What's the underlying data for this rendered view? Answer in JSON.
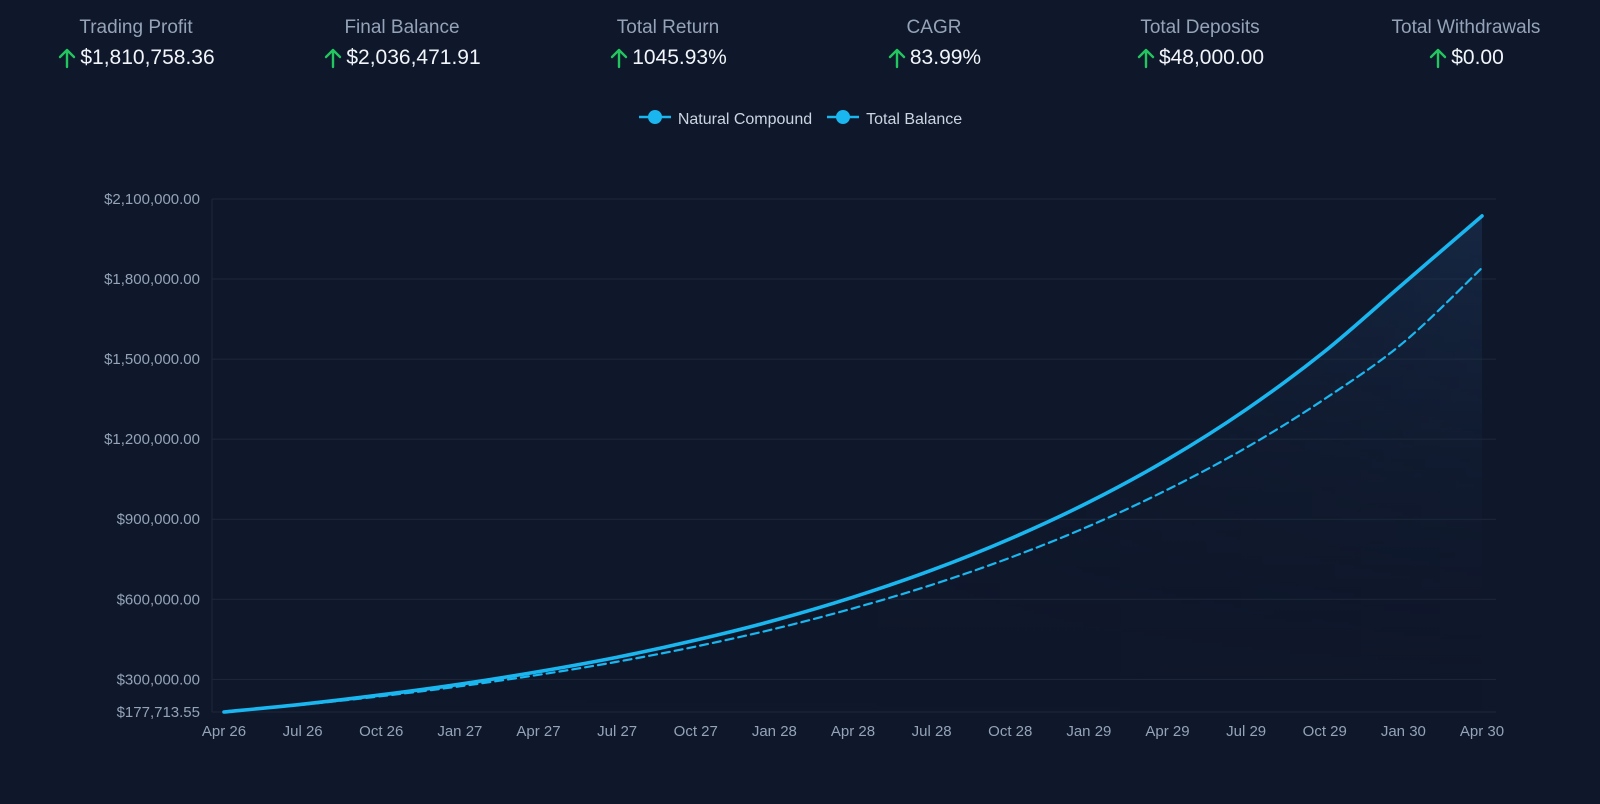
{
  "stats": [
    {
      "label": "Trading Profit",
      "value": "$1,810,758.36",
      "trend": "up"
    },
    {
      "label": "Final Balance",
      "value": "$2,036,471.91",
      "trend": "up"
    },
    {
      "label": "Total Return",
      "value": "1045.93%",
      "trend": "up"
    },
    {
      "label": "CAGR",
      "value": "83.99%",
      "trend": "up"
    },
    {
      "label": "Total Deposits",
      "value": "$48,000.00",
      "trend": "up"
    },
    {
      "label": "Total Withdrawals",
      "value": "$0.00",
      "trend": "up"
    }
  ],
  "colors": {
    "background": "#0f172a",
    "line": "#1ab6f0",
    "up_arrow": "#22c55e",
    "gridline": "#1e293b"
  },
  "icons": {
    "trend_up": "arrow-up-icon",
    "legend_marker": "line-dot-marker-icon"
  },
  "chart_data": {
    "type": "line",
    "legend": {
      "position": "top-center"
    },
    "grid": true,
    "x": [
      "Apr 26",
      "Jul 26",
      "Oct 26",
      "Jan 27",
      "Apr 27",
      "Jul 27",
      "Oct 27",
      "Jan 28",
      "Apr 28",
      "Jul 28",
      "Oct 28",
      "Jan 29",
      "Apr 29",
      "Jul 29",
      "Oct 29",
      "Jan 30",
      "Apr 30"
    ],
    "xlabel": "",
    "ylabel": "",
    "ylim": [
      177713.55,
      2100000
    ],
    "yticks": [
      177713.55,
      300000,
      600000,
      900000,
      1200000,
      1500000,
      1800000,
      2100000
    ],
    "ytick_labels": [
      "$177,713.55",
      "$300,000.00",
      "$600,000.00",
      "$900,000.00",
      "$1,200,000.00",
      "$1,500,000.00",
      "$1,800,000.00",
      "$2,100,000.00"
    ],
    "series": [
      {
        "name": "Natural Compound",
        "style": "dashed",
        "values": [
          177714,
          205000,
          237000,
          274000,
          317000,
          366000,
          423000,
          489000,
          566000,
          654000,
          756000,
          874000,
          1011000,
          1168000,
          1351000,
          1562000,
          1842000
        ]
      },
      {
        "name": "Total Balance",
        "style": "solid",
        "values": [
          177714,
          207000,
          242000,
          282000,
          329000,
          383000,
          447000,
          521000,
          608000,
          709000,
          827000,
          964000,
          1124000,
          1311000,
          1529000,
          1783000,
          2036472
        ]
      }
    ]
  }
}
